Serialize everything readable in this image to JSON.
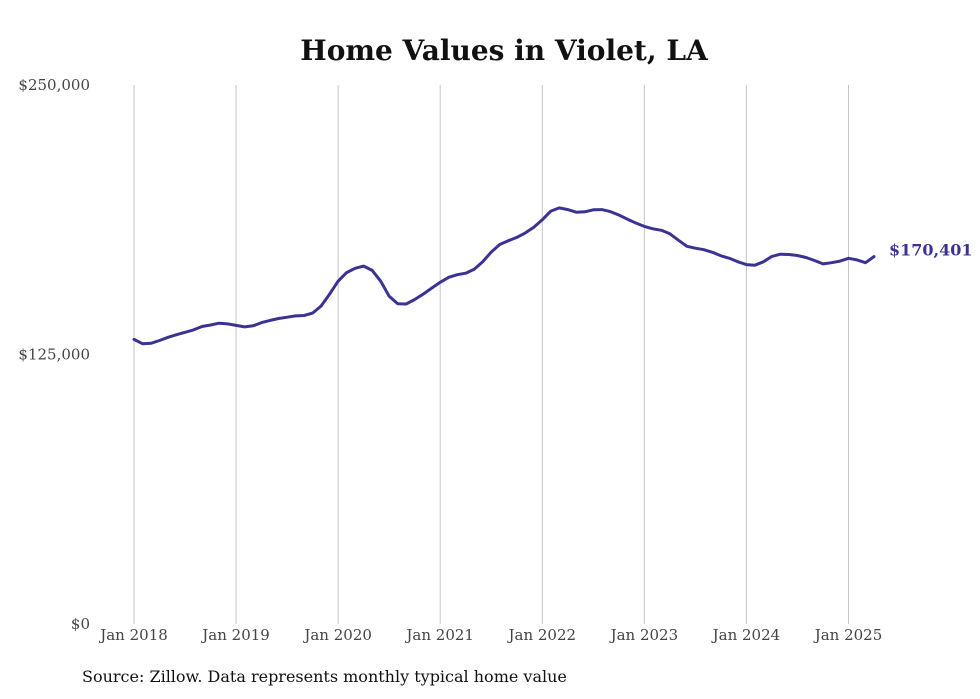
{
  "chart_data": {
    "type": "line",
    "title": "Home Values in Violet, LA",
    "xlabel": "",
    "ylabel": "",
    "ylim": [
      0,
      250000
    ],
    "y_ticks": [
      0,
      125000,
      250000
    ],
    "y_tick_labels": [
      "$0",
      "$125,000",
      "$250,000"
    ],
    "x_ticks": [
      "2018-01",
      "2019-01",
      "2020-01",
      "2021-01",
      "2022-01",
      "2023-01",
      "2024-01",
      "2025-01"
    ],
    "x_tick_labels": [
      "Jan 2018",
      "Jan 2019",
      "Jan 2020",
      "Jan 2021",
      "Jan 2022",
      "Jan 2023",
      "Jan 2024",
      "Jan 2025"
    ],
    "grid": "vertical",
    "line_color": "#3b3394",
    "end_label": "$170,401",
    "series": [
      {
        "name": "",
        "x": [
          "2018-01",
          "2018-02",
          "2018-03",
          "2018-04",
          "2018-05",
          "2018-06",
          "2018-07",
          "2018-08",
          "2018-09",
          "2018-10",
          "2018-11",
          "2018-12",
          "2019-01",
          "2019-02",
          "2019-03",
          "2019-04",
          "2019-05",
          "2019-06",
          "2019-07",
          "2019-08",
          "2019-09",
          "2019-10",
          "2019-11",
          "2019-12",
          "2020-01",
          "2020-02",
          "2020-03",
          "2020-04",
          "2020-05",
          "2020-06",
          "2020-07",
          "2020-08",
          "2020-09",
          "2020-10",
          "2020-11",
          "2020-12",
          "2021-01",
          "2021-02",
          "2021-03",
          "2021-04",
          "2021-05",
          "2021-06",
          "2021-07",
          "2021-08",
          "2021-09",
          "2021-10",
          "2021-11",
          "2021-12",
          "2022-01",
          "2022-02",
          "2022-03",
          "2022-04",
          "2022-05",
          "2022-06",
          "2022-07",
          "2022-08",
          "2022-09",
          "2022-10",
          "2022-11",
          "2022-12",
          "2023-01",
          "2023-02",
          "2023-03",
          "2023-04",
          "2023-05",
          "2023-06",
          "2023-07",
          "2023-08",
          "2023-09",
          "2023-10",
          "2023-11",
          "2023-12",
          "2024-01",
          "2024-02",
          "2024-03",
          "2024-04",
          "2024-05",
          "2024-06",
          "2024-07",
          "2024-08",
          "2024-09",
          "2024-10",
          "2024-11",
          "2024-12",
          "2025-01",
          "2025-02",
          "2025-03",
          "2025-04"
        ],
        "values": [
          132000,
          130000,
          130200,
          131500,
          133000,
          134200,
          135300,
          136400,
          138000,
          138700,
          139500,
          139200,
          138500,
          137800,
          138300,
          139800,
          140800,
          141700,
          142300,
          142900,
          143100,
          144200,
          147500,
          153000,
          159000,
          163000,
          165000,
          166000,
          164000,
          159000,
          152000,
          148500,
          148400,
          150500,
          153000,
          155800,
          158500,
          160800,
          162000,
          162700,
          164500,
          168000,
          172500,
          176000,
          177800,
          179300,
          181400,
          184000,
          187500,
          191500,
          193000,
          192200,
          191000,
          191200,
          192100,
          192200,
          191300,
          189700,
          187800,
          186000,
          184400,
          183300,
          182600,
          181000,
          178000,
          175200,
          174300,
          173600,
          172400,
          170800,
          169600,
          168000,
          166700,
          166400,
          168000,
          170500,
          171500,
          171400,
          170900,
          170000,
          168600,
          167000,
          167600,
          168300,
          169600,
          168900,
          167600,
          170401
        ]
      }
    ]
  },
  "source_text": "Source: Zillow. Data represents monthly typical home value"
}
